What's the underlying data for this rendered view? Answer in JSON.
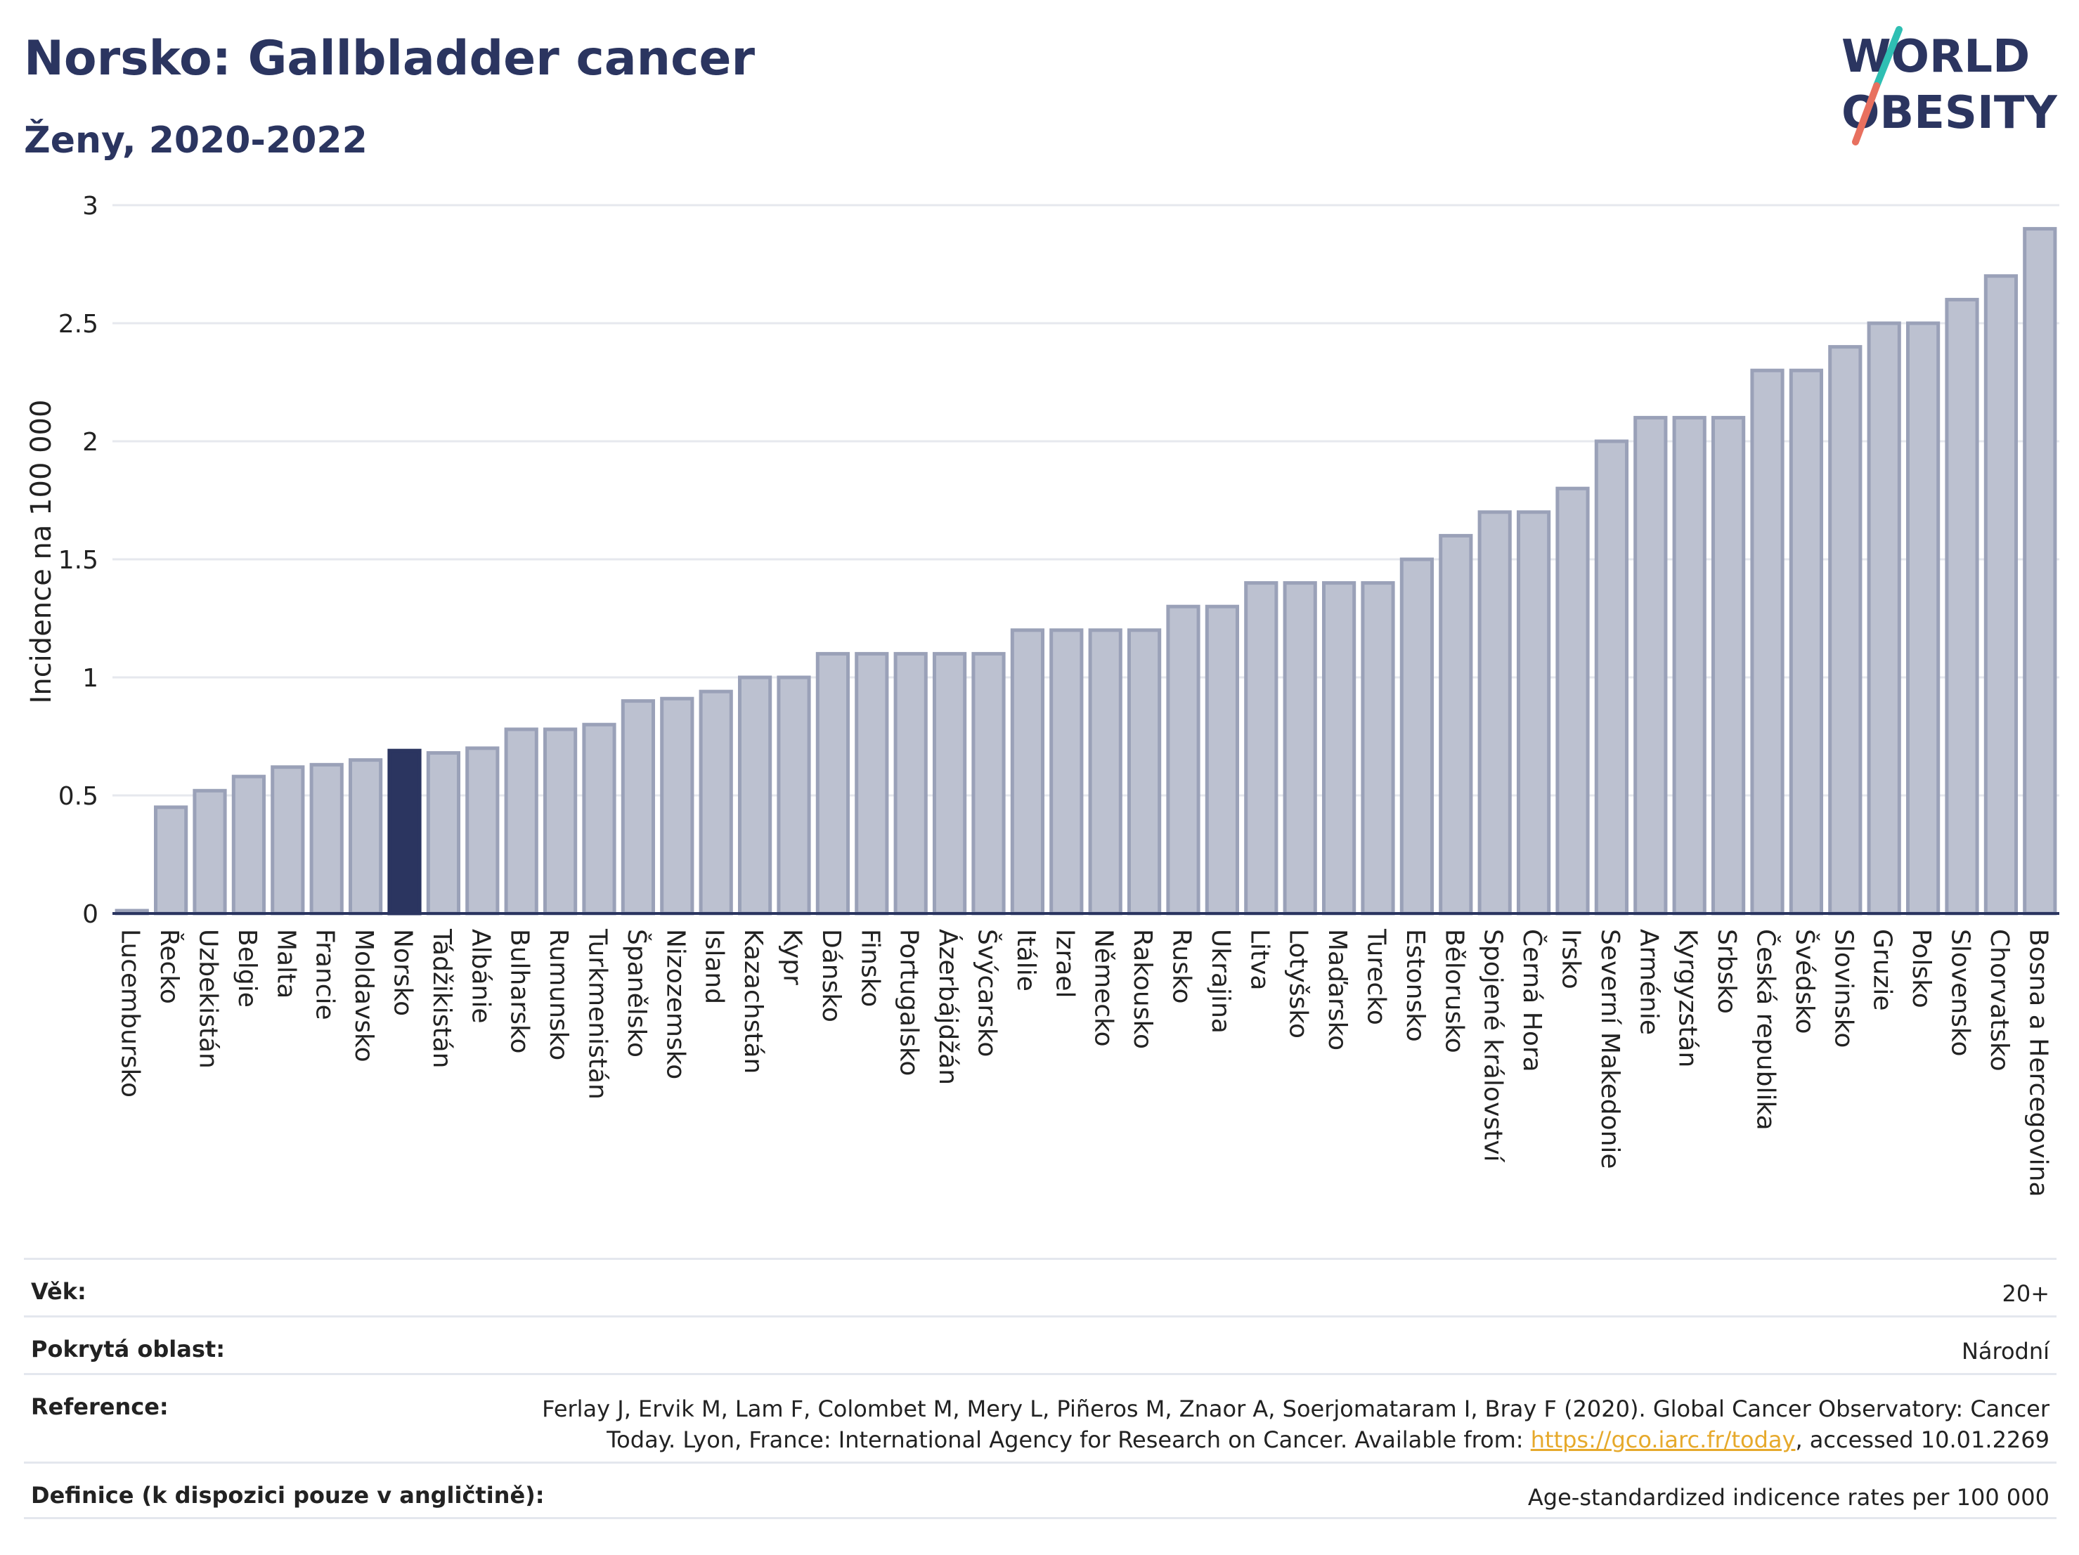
{
  "title": "Norsko: Gallbladder cancer",
  "subtitle": "Ženy, 2020-2022",
  "logo": {
    "line1": "WORLD",
    "line2": "OBESITY",
    "accent_colors": [
      "#2fbfb3",
      "#e8705f"
    ]
  },
  "colors": {
    "bar": "#bcc1d0",
    "bar_stroke": "#9aa1b8",
    "highlight": "#2b3560",
    "grid": "#e6e8ee",
    "axis": "#2b3560"
  },
  "chart_data": {
    "type": "bar",
    "ylabel": "Incidence na 100 000",
    "ylim": [
      0,
      3
    ],
    "yticks": [
      "0",
      "0.5",
      "1",
      "1.5",
      "2",
      "2.5",
      "3"
    ],
    "grid": true,
    "highlight": "Norsko",
    "categories": [
      "Lucembursko",
      "Řecko",
      "Uzbekistán",
      "Belgie",
      "Malta",
      "Francie",
      "Moldavsko",
      "Norsko",
      "Tádžikistán",
      "Albánie",
      "Bulharsko",
      "Rumunsko",
      "Turkmenistán",
      "Španělsko",
      "Nizozemsko",
      "Island",
      "Kazachstán",
      "Kypr",
      "Dánsko",
      "Finsko",
      "Portugalsko",
      "Ázerbájdžán",
      "Švýcarsko",
      "Itálie",
      "Izrael",
      "Německo",
      "Rakousko",
      "Rusko",
      "Ukrajina",
      "Litva",
      "Lotyšsko",
      "Maďarsko",
      "Turecko",
      "Estonsko",
      "Bělorusko",
      "Spojené království",
      "Černá Hora",
      "Irsko",
      "Severní Makedonie",
      "Arménie",
      "Kyrgyzstán",
      "Srbsko",
      "Česká republika",
      "Švédsko",
      "Slovinsko",
      "Gruzie",
      "Polsko",
      "Slovensko",
      "Chorvatsko",
      "Bosna a Hercegovina"
    ],
    "values": [
      0.01,
      0.45,
      0.52,
      0.58,
      0.62,
      0.63,
      0.65,
      0.69,
      0.68,
      0.7,
      0.78,
      0.78,
      0.8,
      0.9,
      0.91,
      0.94,
      1.0,
      1.0,
      1.1,
      1.1,
      1.1,
      1.1,
      1.1,
      1.2,
      1.2,
      1.2,
      1.2,
      1.3,
      1.3,
      1.4,
      1.4,
      1.4,
      1.4,
      1.5,
      1.6,
      1.7,
      1.7,
      1.8,
      2.0,
      2.1,
      2.1,
      2.1,
      2.3,
      2.3,
      2.4,
      2.5,
      2.5,
      2.6,
      2.7,
      2.9
    ]
  },
  "meta": {
    "age_label": "Věk:",
    "age_value": "20+",
    "coverage_label": "Pokrytá oblast:",
    "coverage_value": "Národní",
    "reference_label": "Reference:",
    "reference_text_1": "Ferlay J, Ervik M, Lam F, Colombet M, Mery L, Piñeros M, Znaor A, Soerjomataram I, Bray F (2020). Global Cancer Observatory: Cancer",
    "reference_text_2": "Today. Lyon, France: International Agency for Research on Cancer. Available from: ",
    "reference_link": "https://gco.iarc.fr/today",
    "reference_text_3": ", accessed 10.01.2269",
    "definition_label": "Definice (k dispozici pouze v angličtině):",
    "definition_value": "Age-standardized indicence rates per 100 000"
  }
}
